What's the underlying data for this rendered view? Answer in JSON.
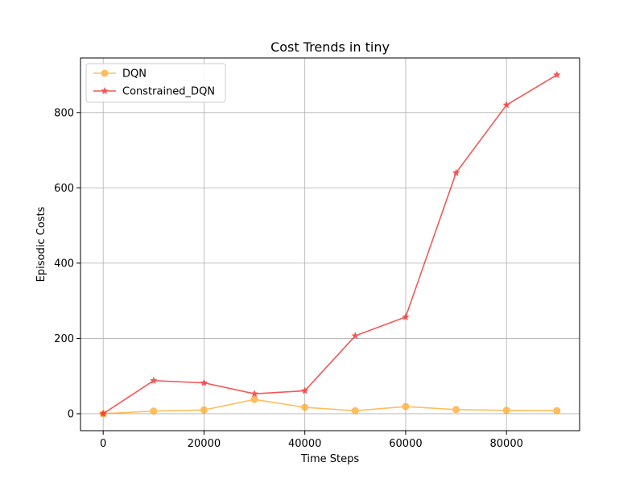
{
  "chart_data": {
    "type": "line",
    "title": "Cost Trends in tiny",
    "xlabel": "Time Steps",
    "ylabel": "Episodic Costs",
    "x": [
      0,
      10000,
      20000,
      30000,
      40000,
      50000,
      60000,
      70000,
      80000,
      90000
    ],
    "xlim": [
      -4500,
      94500
    ],
    "ylim": [
      -45,
      945
    ],
    "xticks": [
      0,
      20000,
      40000,
      60000,
      80000
    ],
    "yticks": [
      0,
      200,
      400,
      600,
      800
    ],
    "grid": true,
    "legend_position": "top-left",
    "series": [
      {
        "name": "DQN",
        "color": "#ffa726",
        "marker": "circle",
        "values": [
          0,
          7,
          10,
          38,
          17,
          8,
          19,
          11,
          9,
          8
        ]
      },
      {
        "name": "Constrained_DQN",
        "color": "#f02020",
        "marker": "star",
        "values": [
          0,
          88,
          82,
          53,
          61,
          207,
          257,
          640,
          820,
          900
        ]
      }
    ]
  }
}
